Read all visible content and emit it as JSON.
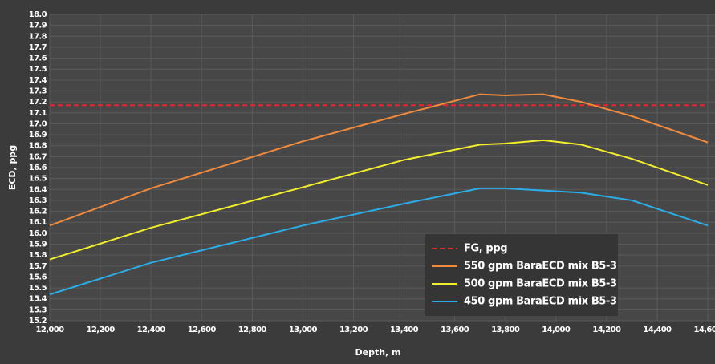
{
  "chart_data": {
    "type": "line",
    "xlabel": "Depth, m",
    "ylabel": "ECD, ppg",
    "x": [
      12000,
      12400,
      13000,
      13400,
      13700,
      13800,
      13950,
      14100,
      14300,
      14600
    ],
    "series": [
      {
        "name": "FG, ppg",
        "color": "#e8262d",
        "style": "dashed",
        "values": [
          17.17,
          17.17,
          17.17,
          17.17,
          17.17,
          17.17,
          17.17,
          17.17,
          17.17,
          17.17
        ]
      },
      {
        "name": "550 gpm BaraECD mix B5-3",
        "color": "#f08a3c",
        "style": "solid",
        "values": [
          16.07,
          16.41,
          16.84,
          17.09,
          17.27,
          17.26,
          17.27,
          17.2,
          17.07,
          16.83
        ]
      },
      {
        "name": "500 gpm BaraECD mix B5-3",
        "color": "#f2ee2a",
        "style": "solid",
        "values": [
          15.76,
          16.05,
          16.42,
          16.67,
          16.81,
          16.82,
          16.85,
          16.81,
          16.68,
          16.44
        ]
      },
      {
        "name": "450 gpm BaraECD mix B5-3",
        "color": "#2aaee8",
        "style": "solid",
        "values": [
          15.44,
          15.73,
          16.07,
          16.27,
          16.41,
          16.41,
          16.39,
          16.37,
          16.3,
          16.07
        ]
      }
    ],
    "xlim": [
      12000,
      14600
    ],
    "xticks": [
      {
        "value": 12000,
        "label": "12,000"
      },
      {
        "value": 12200,
        "label": "12,200"
      },
      {
        "value": 12400,
        "label": "12,400"
      },
      {
        "value": 12600,
        "label": "12,600"
      },
      {
        "value": 12800,
        "label": "12,800"
      },
      {
        "value": 13000,
        "label": "13,000"
      },
      {
        "value": 13200,
        "label": "13,200"
      },
      {
        "value": 13400,
        "label": "13,400"
      },
      {
        "value": 13600,
        "label": "13,600"
      },
      {
        "value": 13800,
        "label": "13,800"
      },
      {
        "value": 14000,
        "label": "14,000"
      },
      {
        "value": 14200,
        "label": "14,200"
      },
      {
        "value": 14400,
        "label": "14,400"
      },
      {
        "value": 14600,
        "label": "14,600"
      }
    ],
    "ylim": [
      15.2,
      18
    ],
    "yticks": [
      15.2,
      15.3,
      15.4,
      15.5,
      15.6,
      15.7,
      15.8,
      15.9,
      {
        "value": 16,
        "label": "16.0"
      },
      16.1,
      16.2,
      16.3,
      16.4,
      16.5,
      16.6,
      16.7,
      16.8,
      16.9,
      {
        "value": 17,
        "label": "17.0"
      },
      17.1,
      17.2,
      17.3,
      17.4,
      17.5,
      17.6,
      17.7,
      17.8,
      17.9,
      {
        "value": 18,
        "label": "18.0"
      }
    ],
    "grid": true,
    "legend": "lower right"
  }
}
